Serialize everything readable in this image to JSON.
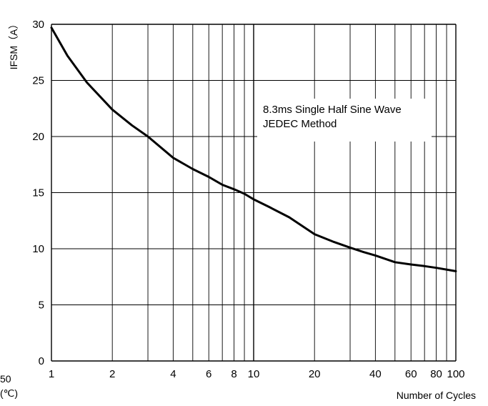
{
  "chart_data": {
    "type": "line",
    "x_scale": "log",
    "y_scale": "linear",
    "xlim": [
      1,
      100
    ],
    "ylim": [
      0,
      30
    ],
    "xlabel": "Number of Cycles",
    "ylabel": "IFSM（A）",
    "x_ticks": [
      1,
      2,
      4,
      6,
      8,
      10,
      20,
      40,
      60,
      80,
      100
    ],
    "x_tick_labels": [
      "1",
      "2",
      "4",
      "6",
      "8",
      "10",
      "20",
      "40",
      "60",
      "80",
      "100"
    ],
    "y_ticks": [
      0,
      5,
      10,
      15,
      20,
      25,
      30
    ],
    "y_tick_labels": [
      "0",
      "5",
      "10",
      "15",
      "20",
      "25",
      "30"
    ],
    "grid": true,
    "annotation_lines": [
      "8.3ms Single Half Sine Wave",
      "JEDEC Method"
    ],
    "series": [
      {
        "x": [
          1,
          1.2,
          1.5,
          2,
          2.5,
          3,
          4,
          5,
          6,
          7,
          8,
          9,
          10,
          12,
          15,
          20,
          25,
          30,
          35,
          40,
          50,
          60,
          70,
          80,
          100
        ],
        "y": [
          29.7,
          27.2,
          24.8,
          22.4,
          21.0,
          20.0,
          18.1,
          17.1,
          16.4,
          15.7,
          15.3,
          14.9,
          14.4,
          13.7,
          12.8,
          11.3,
          10.6,
          10.1,
          9.7,
          9.4,
          8.8,
          8.6,
          8.45,
          8.3,
          8.0
        ]
      }
    ],
    "colors": {
      "line": "#000000",
      "grid": "#000000",
      "background": "#ffffff"
    }
  },
  "fragments": [
    "50",
    "(℃)"
  ]
}
